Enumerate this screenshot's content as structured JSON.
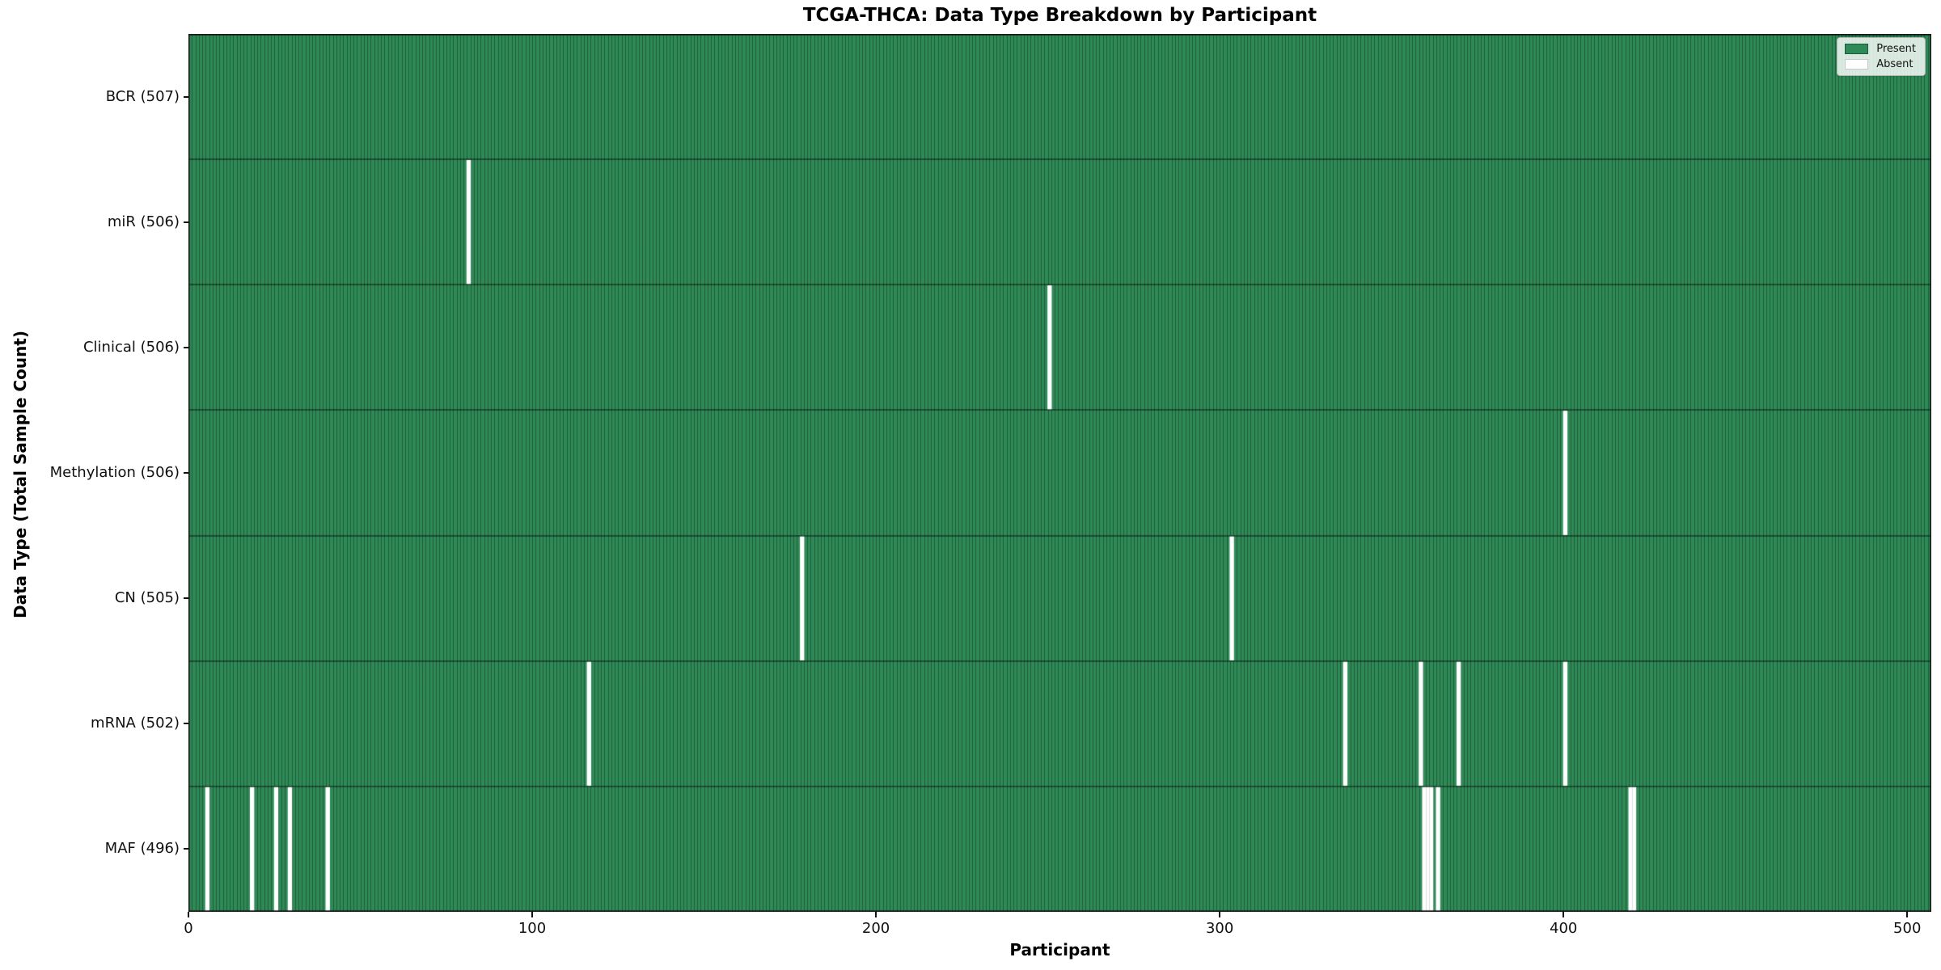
{
  "title": "TCGA-THCA: Data Type Breakdown by Participant",
  "legend": {
    "present_label": "Present",
    "absent_label": "Absent"
  },
  "chart_data": {
    "type": "heatmap",
    "title": "TCGA-THCA: Data Type Breakdown by Participant",
    "xlabel": "Participant",
    "ylabel": "Data Type (Total Sample Count)",
    "x_ticks": [
      0,
      100,
      200,
      300,
      400,
      500
    ],
    "xlim": [
      0,
      507
    ],
    "n_participants": 507,
    "grid": false,
    "legend_position": "upper right",
    "legend_entries": [
      {
        "label": "Present",
        "color": "#2e8b57"
      },
      {
        "label": "Absent",
        "color": "#ffffff"
      }
    ],
    "colors": {
      "present": "#2e8b57",
      "absent": "#ffffff",
      "bar_edge": "rgba(0,0,0,0.34)"
    },
    "rows": [
      {
        "label": "BCR (507)",
        "total": 507,
        "absent_participants": []
      },
      {
        "label": "miR (506)",
        "total": 506,
        "absent_participants": [
          81
        ]
      },
      {
        "label": "Clinical (506)",
        "total": 506,
        "absent_participants": [
          250
        ]
      },
      {
        "label": "Methylation (506)",
        "total": 506,
        "absent_participants": [
          400
        ]
      },
      {
        "label": "CN (505)",
        "total": 505,
        "absent_participants": [
          178,
          303
        ]
      },
      {
        "label": "mRNA (502)",
        "total": 502,
        "absent_participants": [
          116,
          336,
          358,
          369,
          400
        ]
      },
      {
        "label": "MAF (496)",
        "total": 496,
        "absent_participants": [
          5,
          18,
          25,
          29,
          40,
          359,
          360,
          361,
          363,
          419,
          420
        ]
      }
    ]
  }
}
